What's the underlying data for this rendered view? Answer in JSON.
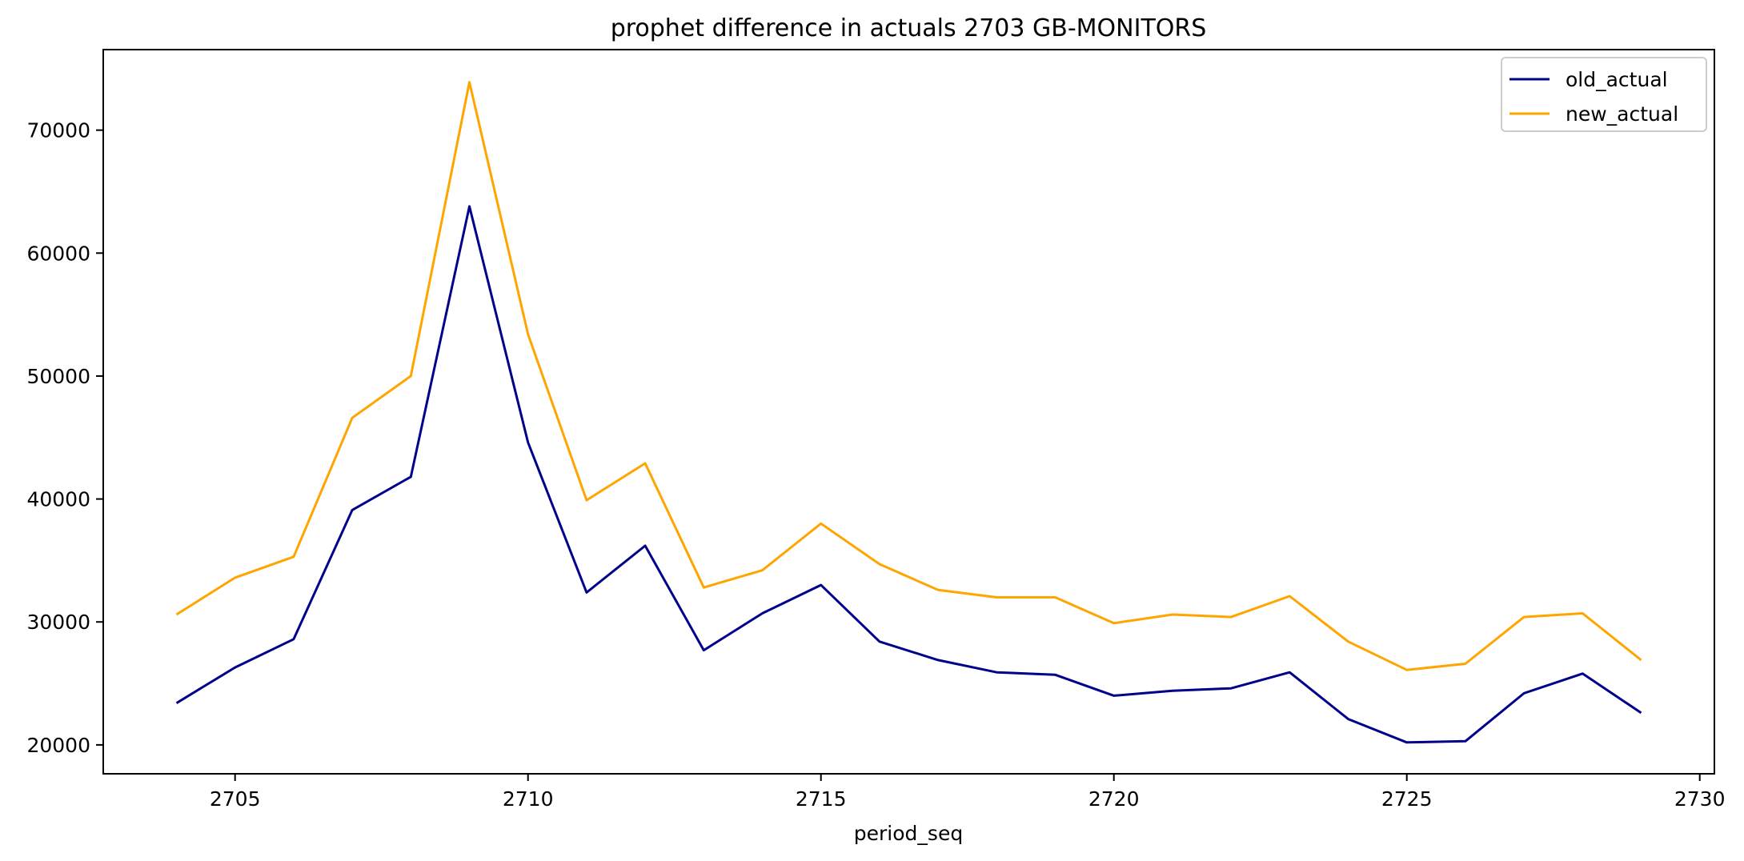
{
  "chart_data": {
    "type": "line",
    "title": "prophet difference in actuals 2703 GB-MONITORS",
    "xlabel": "period_seq",
    "ylabel": "",
    "x": [
      2704,
      2705,
      2706,
      2707,
      2708,
      2709,
      2710,
      2711,
      2712,
      2713,
      2714,
      2715,
      2716,
      2717,
      2718,
      2719,
      2720,
      2721,
      2722,
      2723,
      2724,
      2725,
      2726,
      2727,
      2728,
      2729
    ],
    "xlim": [
      2702.75,
      2730.25
    ],
    "ylim": [
      17650,
      76550
    ],
    "xticks": [
      2705,
      2710,
      2715,
      2720,
      2725,
      2730
    ],
    "xtick_labels": [
      "2705",
      "2710",
      "2715",
      "2720",
      "2725",
      "2730"
    ],
    "yticks": [
      20000,
      30000,
      40000,
      50000,
      60000,
      70000
    ],
    "ytick_labels": [
      "20000",
      "30000",
      "40000",
      "50000",
      "60000",
      "70000"
    ],
    "grid": false,
    "legend_position": "top-right",
    "series": [
      {
        "name": "old_actual",
        "color": "#00008b",
        "values": [
          23400,
          26300,
          28600,
          39100,
          41800,
          63800,
          44600,
          32400,
          36200,
          27700,
          30700,
          33000,
          28400,
          26900,
          25900,
          25700,
          24000,
          24400,
          24600,
          25900,
          22100,
          20200,
          20300,
          24200,
          25800,
          22600
        ]
      },
      {
        "name": "new_actual",
        "color": "#ffa500",
        "values": [
          30600,
          33600,
          35300,
          46600,
          50000,
          73900,
          53400,
          39900,
          42900,
          32800,
          34200,
          38000,
          34700,
          32600,
          32000,
          32000,
          29900,
          30600,
          30400,
          32100,
          28400,
          26100,
          26600,
          30400,
          30700,
          26900
        ]
      }
    ]
  }
}
